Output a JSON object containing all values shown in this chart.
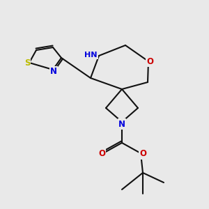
{
  "bg_color": "#e9e9e9",
  "atom_colors": {
    "N": "#0000dd",
    "O": "#cc0000",
    "S": "#bbbb00",
    "H": "#4a8a8a",
    "C": "#111111"
  },
  "lw": 1.5,
  "fs": 8.0
}
